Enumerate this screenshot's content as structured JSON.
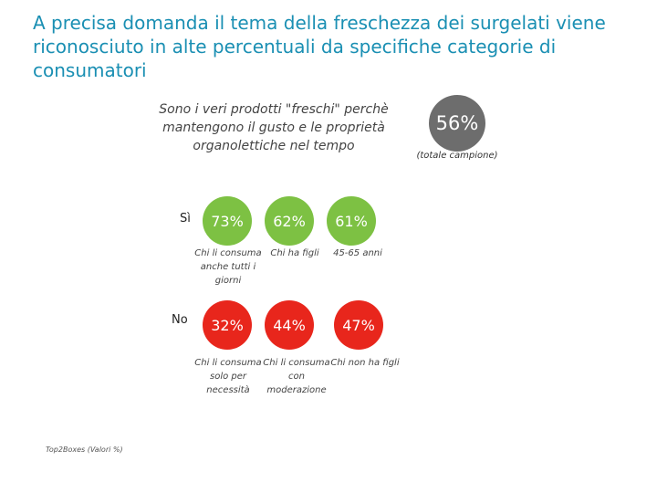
{
  "title": "A precisa domanda il tema della freschezza dei surgelati viene riconosciuto in alte percentuali da specifiche categorie di consumatori",
  "question": "Sono i veri prodotti \"freschi\" perchè mantengono il gusto e le proprietà organolettiche nel tempo",
  "total": {
    "value": "56%",
    "note": "(totale campione)"
  },
  "footnote": "Top2Boxes (Valori %)",
  "colors": {
    "si": "#7dc143",
    "no": "#e8261c",
    "total": "#6d6d6d",
    "title": "#1a8fb3"
  },
  "chart_data": {
    "type": "table",
    "title": "Sono i veri prodotti \"freschi\" perchè mantengono il gusto e le proprietà organolettiche nel tempo",
    "total": 56,
    "unit": "%",
    "rows": [
      {
        "label": "Sì",
        "items": [
          {
            "value": "73%",
            "caption": "Chi li consuma anche tutti i giorni"
          },
          {
            "value": "62%",
            "caption": "Chi ha figli"
          },
          {
            "value": "61%",
            "caption": "45-65 anni"
          }
        ]
      },
      {
        "label": "No",
        "items": [
          {
            "value": "32%",
            "caption": "Chi li consuma solo per necessità"
          },
          {
            "value": "44%",
            "caption": "Chi li consuma con moderazione"
          },
          {
            "value": "47%",
            "caption": "Chi non ha figli"
          }
        ]
      }
    ]
  }
}
